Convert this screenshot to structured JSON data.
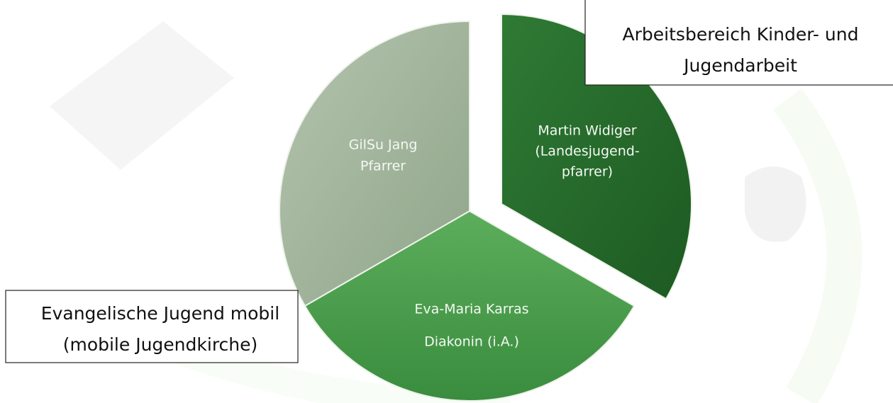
{
  "segments": [
    {
      "lines": [
        "GilSu Jang",
        "Pfarrer"
      ]
    },
    {
      "lines": [
        "Martin Widiger",
        "(Landesjugend-",
        "pfarrer)"
      ]
    },
    {
      "lines": [
        "Eva-Maria Karras",
        "Diakonin (i.A.)"
      ]
    }
  ],
  "callouts": [
    {
      "lines": [
        "Arbeitsbereich Kinder- und",
        "Jugendarbeit"
      ]
    },
    {
      "lines": [
        "Evangelische Jugend mobil",
        "(mobile Jugendkirche)"
      ]
    }
  ]
}
